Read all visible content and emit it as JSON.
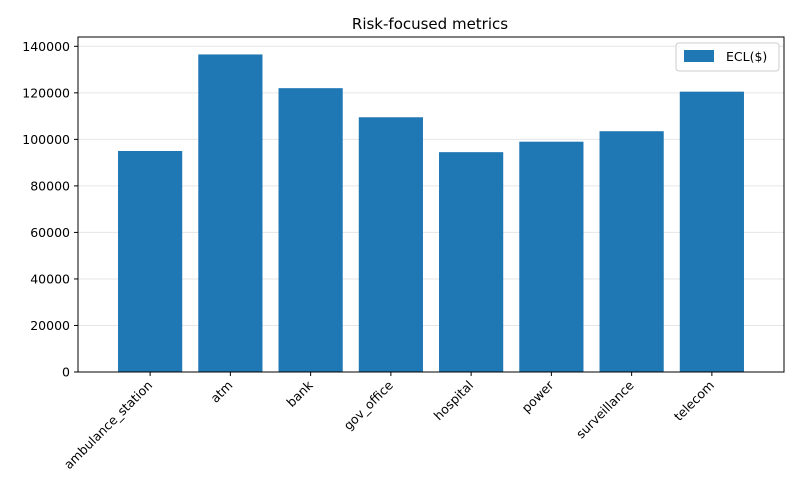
{
  "chart_data": {
    "type": "bar",
    "title": "Risk-focused metrics",
    "xlabel": "",
    "ylabel": "",
    "categories": [
      "ambulance_station",
      "atm",
      "bank",
      "gov_office",
      "hospital",
      "power",
      "surveillance",
      "telecom"
    ],
    "series": [
      {
        "name": "ECL($)",
        "color": "#1f77b4",
        "values": [
          95000,
          136500,
          122000,
          109500,
          94500,
          99000,
          103500,
          120500
        ]
      }
    ],
    "ylim": [
      0,
      144000
    ],
    "yticks": [
      0,
      20000,
      40000,
      60000,
      80000,
      100000,
      120000,
      140000
    ],
    "grid": "horizontal",
    "legend_position": "top-right"
  }
}
